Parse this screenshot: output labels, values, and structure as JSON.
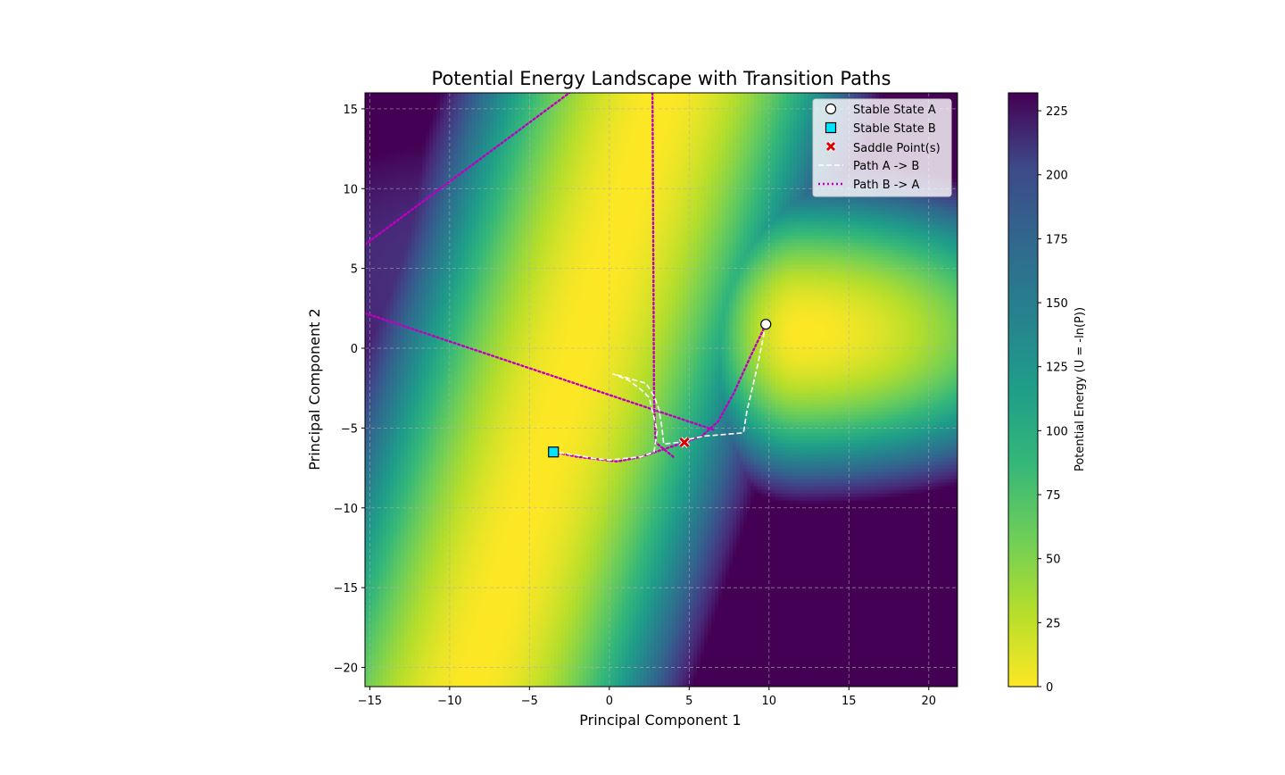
{
  "chart_data": {
    "type": "heatmap",
    "title": "Potential Energy Landscape with Transition Paths",
    "xlabel": "Principal Component 1",
    "ylabel": "Principal Component 2",
    "xlim": [
      -15.3,
      21.8
    ],
    "ylim": [
      -21.2,
      16.0
    ],
    "xticks": [
      -15,
      -10,
      -5,
      0,
      5,
      10,
      15,
      20
    ],
    "yticks": [
      -20,
      -15,
      -10,
      -5,
      0,
      5,
      10,
      15
    ],
    "xtick_labels": [
      "−15",
      "−10",
      "−5",
      "0",
      "5",
      "10",
      "15",
      "20"
    ],
    "ytick_labels": [
      "−20",
      "−15",
      "−10",
      "−5",
      "0",
      "5",
      "10",
      "15"
    ],
    "grid": true,
    "colormap": "viridis_r",
    "colorbar": {
      "label": "Potential Energy (U = -ln(P))",
      "range": [
        0,
        232
      ],
      "ticks": [
        0,
        25,
        50,
        75,
        100,
        125,
        150,
        175,
        200,
        225
      ],
      "tick_labels": [
        "0",
        "25",
        "50",
        "75",
        "100",
        "125",
        "150",
        "175",
        "200",
        "225"
      ]
    },
    "points": [
      {
        "name": "Stable State A",
        "x": 9.8,
        "y": 1.5,
        "marker": "circle",
        "color": "#ffffff"
      },
      {
        "name": "Stable State B",
        "x": -3.5,
        "y": -6.5,
        "marker": "square",
        "color": "#00e5ff"
      },
      {
        "name": "Saddle Point(s)",
        "x": 4.7,
        "y": -5.9,
        "marker": "x",
        "color": "#dd0000"
      }
    ],
    "series": [
      {
        "name": "Path A -> B",
        "style": "dashed",
        "color": "#ffffff",
        "x": [
          9.8,
          9.3,
          8.6,
          8.4,
          7.2,
          6.0,
          5.0,
          4.3,
          3.4,
          3.3,
          3.1,
          2.8,
          2.3,
          0.2,
          1.2,
          2.0,
          2.5,
          3.0,
          2.8,
          2.0,
          0.0,
          -1.0,
          -2.0,
          -3.5
        ],
        "y": [
          1.5,
          -1.0,
          -4.0,
          -5.3,
          -5.4,
          -5.5,
          -5.7,
          -5.9,
          -6.0,
          -5.0,
          -3.8,
          -3.0,
          -2.2,
          -1.6,
          -2.0,
          -2.6,
          -3.1,
          -5.2,
          -6.5,
          -6.8,
          -7.0,
          -6.9,
          -6.7,
          -6.5
        ]
      },
      {
        "name": "Path B -> A",
        "style": "dotted",
        "color": "#bf00bf",
        "x": [
          -3.5,
          -2.0,
          0.5,
          2.0,
          3.5,
          4.7,
          5.8,
          6.8,
          7.8,
          8.8,
          9.8
        ],
        "y": [
          -6.5,
          -6.8,
          -7.1,
          -6.8,
          -6.3,
          -5.9,
          -5.5,
          -4.6,
          -2.8,
          -0.6,
          1.5
        ],
        "extra_segments": [
          {
            "x": [
              -15.3,
              6.5
            ],
            "y": [
              2.2,
              -5.1
            ]
          },
          {
            "x": [
              4.0,
              2.9,
              2.8,
              2.7
            ],
            "y": [
              -6.8,
              -5.9,
              -3.0,
              16.0
            ]
          },
          {
            "x": [
              -15.3,
              -2.5
            ],
            "y": [
              6.5,
              16.0
            ]
          }
        ]
      }
    ],
    "legend": {
      "position": "top-right",
      "entries": [
        "Stable State A",
        "Stable State B",
        "Saddle Point(s)",
        "Path A -> B",
        "Path B -> A"
      ]
    }
  }
}
